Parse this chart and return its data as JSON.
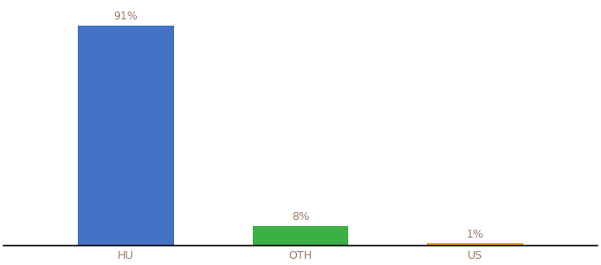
{
  "categories": [
    "HU",
    "OTH",
    "US"
  ],
  "values": [
    91,
    8,
    1
  ],
  "colors": [
    "#4472C4",
    "#3CB044",
    "#F5A623"
  ],
  "labels": [
    "91%",
    "8%",
    "1%"
  ],
  "ylim": [
    0,
    100
  ],
  "background_color": "#ffffff",
  "label_fontsize": 9,
  "tick_fontsize": 9,
  "tick_color": "#9E7A6A",
  "label_color": "#9E7A6A",
  "bar_width": 0.55,
  "x_positions": [
    1,
    2,
    3
  ],
  "xlim": [
    0.3,
    3.7
  ]
}
